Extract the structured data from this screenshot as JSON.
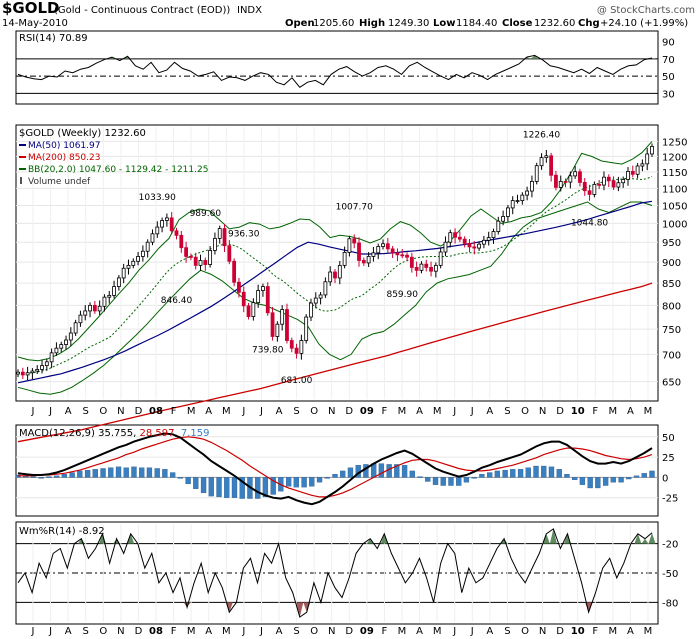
{
  "header": {
    "symbol": "$GOLD",
    "name": "(Gold - Continuous Contract (EOD))",
    "exchange": "INDX",
    "copyright": "@ StockCharts.com",
    "date": "14-May-2010",
    "open_label": "Open",
    "open": "1205.60",
    "high_label": "High",
    "high": "1249.30",
    "low_label": "Low",
    "low": "1184.40",
    "close_label": "Close",
    "close": "1232.60",
    "chg_label": "Chg",
    "chg": "+24.10 (+1.99%)"
  },
  "colors": {
    "ma50": "#000080",
    "ma200": "#cc0000",
    "bb": "#006400",
    "up_candle": "#000000",
    "down_candle": "#cc0033",
    "signal": "#cc0000",
    "histogram": "#3a7fc0",
    "shade": "#5f8a5f"
  },
  "chart_data": [
    {
      "type": "line",
      "panel": "RSI",
      "label": "RSI(14) 70.89",
      "ylim": [
        20,
        100
      ],
      "yticks": [
        "90",
        "70",
        "50",
        "30"
      ],
      "reference_lines": [
        70,
        50,
        30
      ],
      "series": [
        {
          "name": "RSI(14)",
          "values": [
            52,
            49,
            47,
            46,
            50,
            49,
            56,
            54,
            58,
            60,
            65,
            69,
            72,
            68,
            73,
            62,
            58,
            66,
            54,
            57,
            66,
            59,
            56,
            50,
            52,
            55,
            45,
            49,
            48,
            45,
            50,
            54,
            52,
            43,
            40,
            48,
            37,
            43,
            45,
            40,
            52,
            58,
            61,
            55,
            50,
            54,
            60,
            62,
            58,
            52,
            62,
            66,
            60,
            55,
            50,
            46,
            52,
            48,
            54,
            51,
            46,
            52,
            56,
            60,
            64,
            72,
            74,
            69,
            62,
            60,
            57,
            54,
            58,
            53,
            60,
            56,
            52,
            58,
            62,
            63,
            69,
            71
          ]
        }
      ]
    },
    {
      "type": "candlestick",
      "panel": "price",
      "label": "$GOLD (Weekly) 1232.60",
      "scale": "log",
      "ylim": [
        620,
        1300
      ],
      "yticks": [
        "1250",
        "1200",
        "1150",
        "1100",
        "1050",
        "1000",
        "950",
        "900",
        "850",
        "800",
        "750",
        "700",
        "650"
      ],
      "legend": [
        {
          "text": "MA(50) 1061.97"
        },
        {
          "text": "MA(200) 850.23"
        },
        {
          "text": "BB(20,2.0) 1047.60 - 1129.42 - 1211.25"
        },
        {
          "text": "Volume undef"
        }
      ],
      "close": [
        667,
        662,
        666,
        669,
        672,
        679,
        686,
        703,
        712,
        719,
        728,
        742,
        763,
        779,
        788,
        800,
        788,
        798,
        818,
        822,
        842,
        862,
        885,
        892,
        902,
        914,
        927,
        950,
        972,
        990,
        1008,
        1015,
        980,
        968,
        936,
        914,
        912,
        892,
        904,
        894,
        929,
        960,
        986,
        941,
        902,
        852,
        829,
        799,
        776,
        806,
        833,
        842,
        784,
        735,
        760,
        791,
        727,
        712,
        702,
        727,
        775,
        805,
        816,
        823,
        853,
        876,
        862,
        892,
        924,
        959,
        948,
        904,
        898,
        914,
        923,
        939,
        946,
        933,
        923,
        918,
        917,
        912,
        887,
        880,
        895,
        887,
        878,
        892,
        925,
        950,
        975,
        963,
        958,
        947,
        938,
        935,
        945,
        955,
        962,
        978,
        1006,
        1019,
        1043,
        1064,
        1064,
        1080,
        1092,
        1121,
        1170,
        1196,
        1202,
        1140,
        1103,
        1121,
        1119,
        1138,
        1151,
        1118,
        1093,
        1082,
        1112,
        1110,
        1134,
        1123,
        1104,
        1117,
        1127,
        1152,
        1143,
        1169,
        1176,
        1208,
        1233
      ],
      "ma50": [
        648,
        652,
        656,
        660,
        664,
        670,
        676,
        683,
        690,
        698,
        707,
        717,
        727,
        737,
        748,
        760,
        772,
        785,
        798,
        813,
        829,
        846,
        863,
        881,
        899,
        918,
        937,
        950,
        945,
        938,
        932,
        926,
        920,
        920,
        921,
        923,
        926,
        928,
        931,
        934,
        938,
        942,
        946,
        951,
        956,
        961,
        966,
        971,
        977,
        983,
        989,
        996,
        1003,
        1011,
        1020,
        1029,
        1038,
        1047,
        1057,
        1062
      ],
      "ma200": [
        552,
        555,
        558,
        561,
        564,
        567,
        570,
        574,
        578,
        582,
        586,
        590,
        594,
        598,
        602,
        606,
        610,
        614,
        618,
        622,
        626,
        630,
        634,
        638,
        643,
        648,
        653,
        658,
        663,
        668,
        673,
        678,
        683,
        688,
        693,
        698,
        704,
        710,
        716,
        722,
        728,
        734,
        740,
        746,
        752,
        758,
        764,
        770,
        776,
        782,
        788,
        794,
        800,
        806,
        812,
        818,
        824,
        830,
        836,
        842,
        850
      ],
      "bb_upper": [
        695,
        690,
        688,
        692,
        700,
        712,
        730,
        752,
        775,
        800,
        825,
        850,
        880,
        905,
        935,
        960,
        1010,
        1030,
        1040,
        1035,
        1010,
        985,
        990,
        1002,
        998,
        985,
        990,
        1000,
        1012,
        1010,
        990,
        962,
        968,
        965,
        958,
        948,
        958,
        985,
        1005,
        995,
        975,
        950,
        940,
        955,
        985,
        1020,
        1040,
        1020,
        1000,
        1005,
        1015,
        1020,
        1030,
        1060,
        1100,
        1150,
        1210,
        1200,
        1185,
        1180,
        1175,
        1190,
        1212,
        1250
      ],
      "bb_lower": [
        640,
        635,
        630,
        628,
        632,
        640,
        652,
        665,
        680,
        698,
        718,
        738,
        760,
        785,
        810,
        835,
        860,
        880,
        870,
        855,
        835,
        815,
        805,
        800,
        790,
        780,
        770,
        755,
        720,
        700,
        690,
        700,
        730,
        740,
        745,
        760,
        780,
        800,
        830,
        850,
        860,
        865,
        870,
        880,
        890,
        920,
        960,
        990,
        1010,
        1020,
        1030,
        1040,
        1050,
        1060,
        1040,
        1030,
        1045,
        1060,
        1060,
        1050
      ],
      "annotations": [
        "1033.90",
        "989.60",
        "936.30",
        "846.40",
        "739.80",
        "681.00",
        "1007.70",
        "859.90",
        "1226.40",
        "1044.80"
      ]
    },
    {
      "type": "line",
      "panel": "MACD",
      "label": "MACD(12,26,9)",
      "label_values": [
        "35.755",
        "28.597",
        "7.159"
      ],
      "ylim": [
        -45,
        62
      ],
      "yticks": [
        "50",
        "25",
        "0",
        "-25"
      ],
      "series": [
        {
          "name": "MACD",
          "values": [
            5,
            4,
            3,
            3,
            4,
            6,
            9,
            13,
            17,
            21,
            25,
            29,
            33,
            37,
            40,
            44,
            47,
            50,
            52,
            54,
            53,
            49,
            42,
            35,
            28,
            20,
            14,
            8,
            2,
            -5,
            -12,
            -18,
            -22,
            -25,
            -26,
            -24,
            -28,
            -31,
            -33,
            -30,
            -24,
            -18,
            -11,
            -3,
            5,
            11,
            17,
            22,
            26,
            30,
            33,
            29,
            23,
            17,
            11,
            7,
            4,
            1,
            3,
            7,
            12,
            15,
            19,
            22,
            25,
            28,
            33,
            38,
            42,
            44,
            44,
            40,
            33,
            26,
            20,
            17,
            17,
            19,
            17,
            20,
            25,
            30,
            36
          ]
        },
        {
          "name": "Signal",
          "values": [
            2,
            2,
            2,
            3,
            3,
            4,
            5,
            7,
            9,
            12,
            15,
            18,
            21,
            24,
            28,
            31,
            35,
            38,
            41,
            44,
            47,
            49,
            50,
            49,
            47,
            43,
            38,
            33,
            27,
            21,
            14,
            8,
            2,
            -4,
            -9,
            -13,
            -16,
            -19,
            -22,
            -24,
            -24,
            -22,
            -19,
            -15,
            -10,
            -5,
            0,
            5,
            10,
            14,
            18,
            21,
            22,
            22,
            20,
            17,
            14,
            11,
            9,
            8,
            8,
            9,
            11,
            13,
            15,
            18,
            21,
            24,
            28,
            31,
            34,
            36,
            36,
            35,
            33,
            30,
            27,
            25,
            23,
            22,
            23,
            25,
            28
          ]
        }
      ]
    },
    {
      "type": "line",
      "panel": "Williams %R",
      "label": "Wm%R(14) -8.92",
      "ylim": [
        -100,
        0
      ],
      "yticks": [
        "-20",
        "-50",
        "-80"
      ],
      "reference_lines": [
        -20,
        -50,
        -80
      ],
      "series": [
        {
          "name": "Wm%R(14)",
          "values": [
            -60,
            -50,
            -70,
            -40,
            -55,
            -30,
            -25,
            -45,
            -20,
            -15,
            -35,
            -25,
            -10,
            -40,
            -15,
            -30,
            -10,
            -20,
            -45,
            -30,
            -60,
            -50,
            -70,
            -55,
            -85,
            -60,
            -40,
            -70,
            -50,
            -65,
            -90,
            -80,
            -45,
            -35,
            -60,
            -30,
            -40,
            -20,
            -55,
            -70,
            -95,
            -90,
            -60,
            -80,
            -50,
            -65,
            -75,
            -55,
            -30,
            -20,
            -15,
            -25,
            -10,
            -30,
            -45,
            -60,
            -50,
            -35,
            -55,
            -80,
            -40,
            -20,
            -30,
            -70,
            -45,
            -60,
            -55,
            -40,
            -25,
            -15,
            -35,
            -50,
            -60,
            -45,
            -30,
            -10,
            -5,
            -25,
            -10,
            -35,
            -60,
            -90,
            -70,
            -45,
            -35,
            -55,
            -40,
            -20,
            -10,
            -15,
            -9
          ]
        }
      ]
    }
  ],
  "x_axis": {
    "labels": [
      "J",
      "J",
      "A",
      "S",
      "O",
      "N",
      "D",
      "08",
      "F",
      "M",
      "A",
      "M",
      "J",
      "J",
      "A",
      "S",
      "O",
      "N",
      "D",
      "09",
      "F",
      "M",
      "A",
      "M",
      "J",
      "J",
      "A",
      "S",
      "O",
      "N",
      "D",
      "10",
      "F",
      "M",
      "A",
      "M"
    ],
    "bold": [
      "08",
      "09",
      "10"
    ]
  }
}
